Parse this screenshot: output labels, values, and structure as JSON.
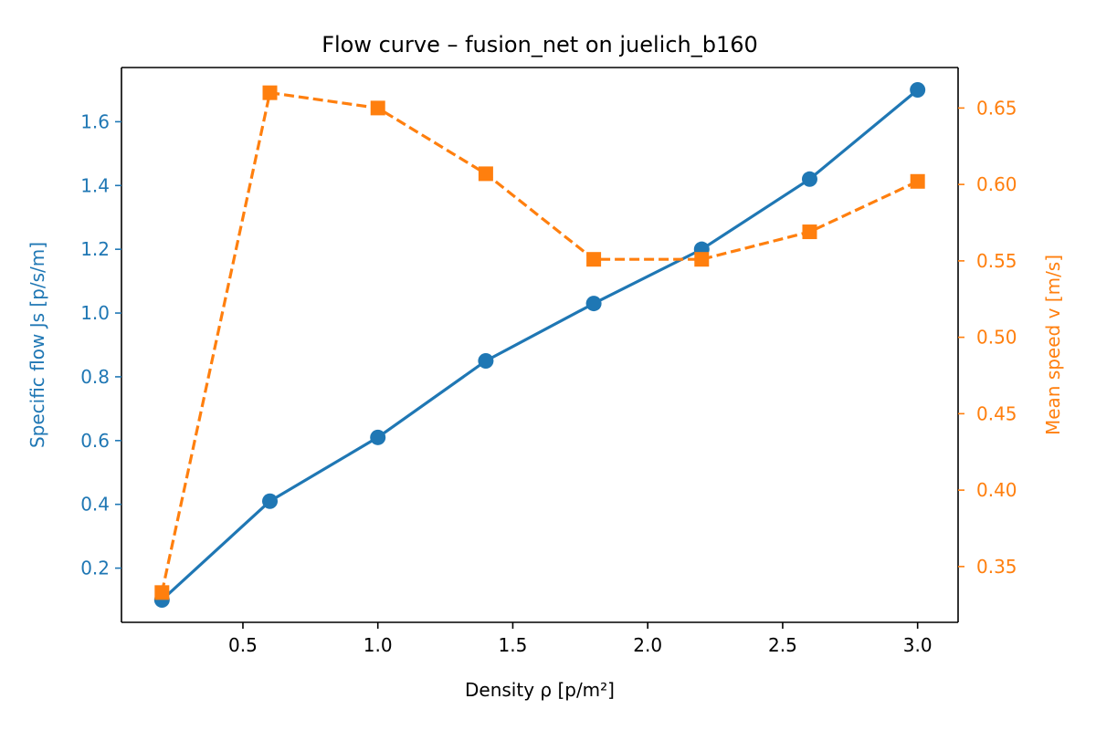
{
  "chart_data": {
    "type": "line",
    "title": "Flow curve – fusion_net on juelich_b160",
    "xlabel": "Density ρ [p/m²]",
    "ylabel_left": "Specific flow Js [p/s/m]",
    "ylabel_right": "Mean speed v [m/s]",
    "xlim": [
      0.05,
      3.15
    ],
    "ylim_left": [
      0.03,
      1.77
    ],
    "ylim_right": [
      0.3135,
      0.6765
    ],
    "x_ticks": [
      0.5,
      1.0,
      1.5,
      2.0,
      2.5,
      3.0
    ],
    "x_tick_labels": [
      "0.5",
      "1.0",
      "1.5",
      "2.0",
      "2.5",
      "3.0"
    ],
    "y_left_ticks": [
      0.2,
      0.4,
      0.6,
      0.8,
      1.0,
      1.2,
      1.4,
      1.6
    ],
    "y_left_tick_labels": [
      "0.2",
      "0.4",
      "0.6",
      "0.8",
      "1.0",
      "1.2",
      "1.4",
      "1.6"
    ],
    "y_right_ticks": [
      0.35,
      0.4,
      0.45,
      0.5,
      0.55,
      0.6,
      0.65
    ],
    "y_right_tick_labels": [
      "0.35",
      "0.40",
      "0.45",
      "0.50",
      "0.55",
      "0.60",
      "0.65"
    ],
    "x": [
      0.2,
      0.6,
      1.0,
      1.4,
      1.8,
      2.2,
      2.6,
      3.0
    ],
    "grid": false,
    "legend": "none",
    "series": [
      {
        "axis": "left",
        "color": "#1f77b4",
        "line_style": "solid",
        "marker": "circle",
        "values": [
          0.1,
          0.41,
          0.61,
          0.85,
          1.03,
          1.2,
          1.42,
          1.7
        ]
      },
      {
        "axis": "right",
        "color": "#ff7f0e",
        "line_style": "dashed",
        "marker": "square",
        "values": [
          0.333,
          0.66,
          0.65,
          0.607,
          0.551,
          0.551,
          0.569,
          0.602
        ]
      }
    ]
  }
}
